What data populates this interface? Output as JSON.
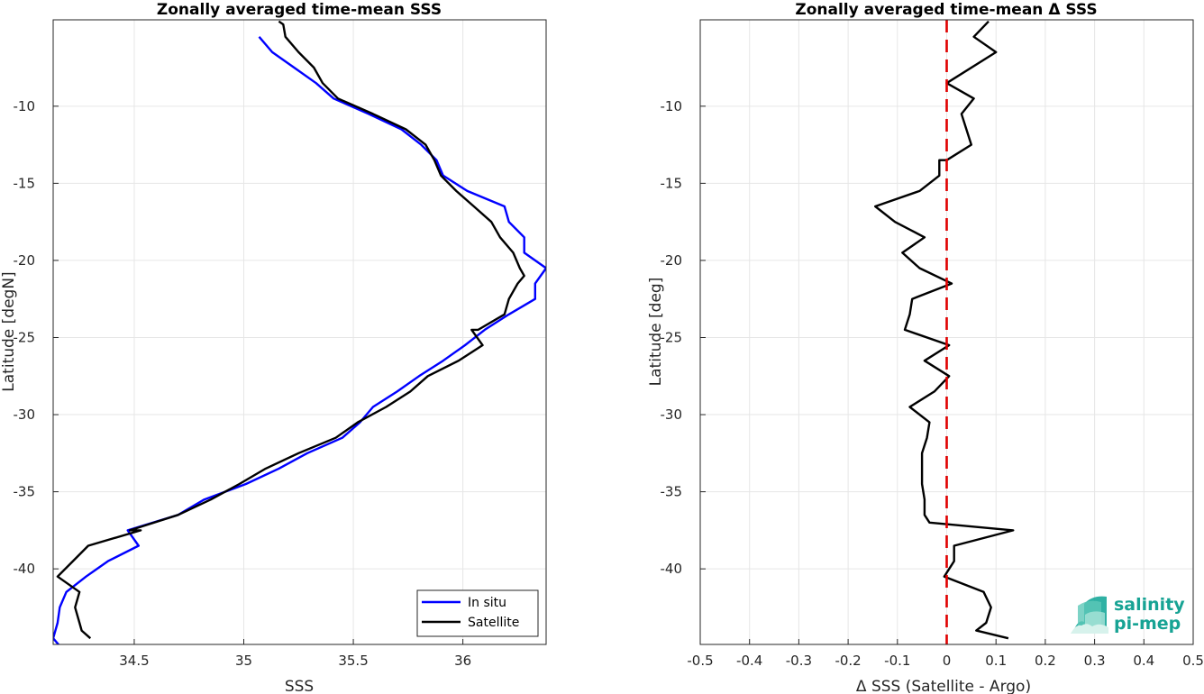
{
  "chart_data": [
    {
      "type": "line",
      "title": "Zonally averaged time-mean SSS",
      "xlabel": "SSS",
      "ylabel": "Latitude [degN]",
      "xlim": [
        34.13,
        36.38
      ],
      "ylim": [
        -44.9,
        -4.4
      ],
      "xticks": [
        34.5,
        35,
        35.5,
        36
      ],
      "xtick_labels": [
        "34.5",
        "35",
        "35.5",
        "36"
      ],
      "yticks": [
        -10,
        -15,
        -20,
        -25,
        -30,
        -35,
        -40
      ],
      "ytick_labels": [
        "-10",
        "-15",
        "-20",
        "-25",
        "-30",
        "-35",
        "-40"
      ],
      "grid": true,
      "legend_position": "bottom-right",
      "series": [
        {
          "name": "In situ",
          "color": "#0000ff",
          "x": [
            35.07,
            35.13,
            35.23,
            35.33,
            35.41,
            35.57,
            35.72,
            35.81,
            35.88,
            35.91,
            36.02,
            36.19,
            36.21,
            36.28,
            36.28,
            36.38,
            36.33,
            36.33,
            36.21,
            36.1,
            36.01,
            35.91,
            35.8,
            35.7,
            35.59,
            35.53,
            35.45,
            35.29,
            35.16,
            35.01,
            34.82,
            34.7,
            34.47,
            34.52,
            34.38,
            34.28,
            34.19,
            34.16,
            34.15,
            34.13,
            34.16
          ],
          "y": [
            -5.5,
            -6.5,
            -7.5,
            -8.5,
            -9.5,
            -10.5,
            -11.5,
            -12.5,
            -13.5,
            -14.5,
            -15.5,
            -16.5,
            -17.5,
            -18.5,
            -19.5,
            -20.5,
            -21.5,
            -22.5,
            -23.5,
            -24.5,
            -25.5,
            -26.5,
            -27.5,
            -28.5,
            -29.5,
            -30.5,
            -31.5,
            -32.5,
            -33.5,
            -34.5,
            -35.5,
            -36.5,
            -37.5,
            -38.5,
            -39.5,
            -40.5,
            -41.5,
            -42.5,
            -43.5,
            -44.5,
            -45.0
          ]
        },
        {
          "name": "Satellite",
          "color": "#000000",
          "x": [
            35.16,
            35.18,
            35.19,
            35.25,
            35.32,
            35.36,
            35.43,
            35.59,
            35.74,
            35.83,
            35.87,
            35.9,
            35.97,
            36.05,
            36.13,
            36.17,
            36.23,
            36.26,
            36.28,
            36.25,
            36.21,
            36.19,
            36.07,
            36.04,
            36.09,
            35.98,
            35.84,
            35.76,
            35.65,
            35.52,
            35.42,
            35.25,
            35.1,
            34.98,
            34.85,
            34.7,
            34.48,
            34.53,
            34.29,
            34.22,
            34.15,
            34.25,
            34.23,
            34.25,
            34.26,
            34.3
          ],
          "y": [
            -4.5,
            -4.7,
            -5.5,
            -6.5,
            -7.5,
            -8.5,
            -9.5,
            -10.5,
            -11.5,
            -12.5,
            -13.5,
            -14.5,
            -15.5,
            -16.5,
            -17.5,
            -18.5,
            -19.5,
            -20.5,
            -21.0,
            -21.5,
            -22.5,
            -23.5,
            -24.5,
            -24.5,
            -25.5,
            -26.5,
            -27.5,
            -28.5,
            -29.5,
            -30.5,
            -31.5,
            -32.5,
            -33.5,
            -34.5,
            -35.5,
            -36.5,
            -37.5,
            -37.5,
            -38.5,
            -39.5,
            -40.5,
            -41.5,
            -42.5,
            -43.5,
            -44.0,
            -44.5
          ]
        }
      ]
    },
    {
      "type": "line",
      "title": "Zonally averaged time-mean Δ SSS",
      "xlabel": "Δ SSS (Satellite - Argo)",
      "ylabel": "Latitude [deg]",
      "xlim": [
        -0.5,
        0.5
      ],
      "ylim": [
        -44.9,
        -4.4
      ],
      "xticks": [
        -0.5,
        -0.4,
        -0.3,
        -0.2,
        -0.1,
        0,
        0.1,
        0.2,
        0.3,
        0.4,
        0.5
      ],
      "xtick_labels": [
        "-0.5",
        "-0.4",
        "-0.3",
        "-0.2",
        "-0.1",
        "0",
        "0.1",
        "0.2",
        "0.3",
        "0.4",
        "0.5"
      ],
      "yticks": [
        -10,
        -15,
        -20,
        -25,
        -30,
        -35,
        -40
      ],
      "ytick_labels": [
        "-10",
        "-15",
        "-20",
        "-25",
        "-30",
        "-35",
        "-40"
      ],
      "grid": true,
      "reference_line": {
        "x": 0,
        "color": "#e00000",
        "style": "dashed"
      },
      "series": [
        {
          "color": "#000000",
          "x": [
            0.085,
            0.055,
            0.1,
            0.0,
            0.0,
            0.055,
            0.03,
            0.05,
            0.0,
            -0.015,
            -0.015,
            -0.055,
            -0.145,
            -0.105,
            -0.045,
            -0.09,
            -0.055,
            0.01,
            -0.07,
            -0.075,
            -0.085,
            0.005,
            -0.045,
            0.005,
            -0.025,
            -0.075,
            -0.035,
            -0.04,
            -0.05,
            -0.05,
            -0.05,
            -0.045,
            -0.045,
            -0.035,
            0.135,
            0.015,
            0.015,
            0.005,
            -0.005,
            0.075,
            0.09,
            0.08,
            0.06,
            0.125
          ],
          "y": [
            -4.5,
            -5.5,
            -6.5,
            -8.5,
            -8.5,
            -9.5,
            -10.5,
            -12.5,
            -13.5,
            -13.5,
            -14.5,
            -15.5,
            -16.5,
            -17.5,
            -18.5,
            -19.5,
            -20.5,
            -21.5,
            -22.5,
            -23.5,
            -24.5,
            -25.5,
            -26.5,
            -27.5,
            -28.5,
            -29.5,
            -30.5,
            -31.5,
            -32.5,
            -33.5,
            -34.5,
            -35.5,
            -36.5,
            -37.0,
            -37.5,
            -38.5,
            -39.5,
            -40.0,
            -40.5,
            -41.5,
            -42.5,
            -43.5,
            -44.0,
            -44.5
          ]
        }
      ]
    }
  ],
  "legend": {
    "items": [
      {
        "label": "In situ",
        "color": "#0000ff"
      },
      {
        "label": "Satellite",
        "color": "#000000"
      }
    ]
  },
  "logo": {
    "line1": "salinity",
    "line2": "pi-mep"
  }
}
